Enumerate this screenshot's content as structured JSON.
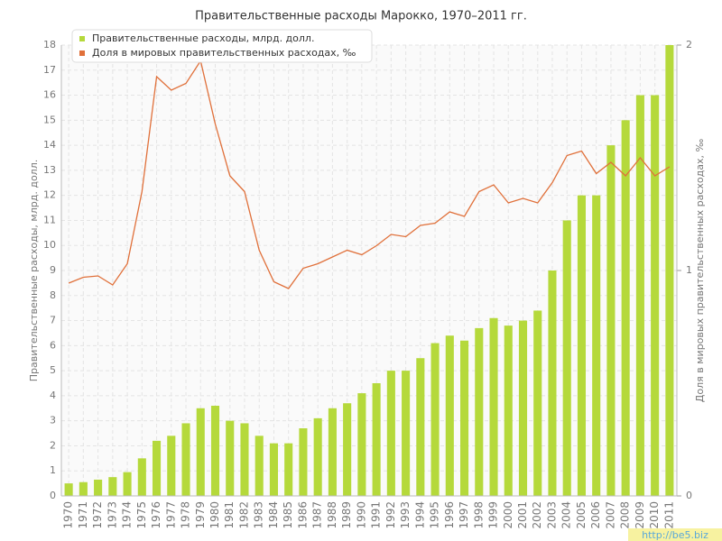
{
  "chart_data": {
    "type": "bar_line",
    "title": "Правительственные расходы Марокко, 1970–2011 гг.",
    "ylabel": "Правительственные расходы, млрд. долл.",
    "y2label": "Доля в мировых правительственных расходах, ‰",
    "watermark": "http://be5.biz",
    "categories": [
      "1970",
      "1971",
      "1972",
      "1973",
      "1974",
      "1975",
      "1976",
      "1977",
      "1978",
      "1979",
      "1980",
      "1981",
      "1982",
      "1983",
      "1984",
      "1985",
      "1986",
      "1987",
      "1988",
      "1989",
      "1990",
      "1991",
      "1992",
      "1993",
      "1994",
      "1995",
      "1996",
      "1997",
      "1998",
      "1999",
      "2000",
      "2001",
      "2002",
      "2003",
      "2004",
      "2005",
      "2006",
      "2007",
      "2008",
      "2009",
      "2010",
      "2011"
    ],
    "series": [
      {
        "name": "Правительственные расходы, млрд. долл.",
        "color": "#b5d93b",
        "type": "bar",
        "values": [
          0.5,
          0.55,
          0.65,
          0.75,
          0.95,
          1.5,
          2.2,
          2.4,
          2.9,
          3.5,
          3.6,
          3.0,
          2.9,
          2.4,
          2.1,
          2.1,
          2.7,
          3.1,
          3.5,
          3.7,
          4.1,
          4.5,
          5.0,
          5.0,
          5.5,
          6.1,
          6.4,
          6.2,
          6.7,
          7.1,
          6.8,
          7.0,
          7.4,
          9.0,
          11.0,
          12.0,
          12.0,
          14.0,
          15.0,
          16.0,
          16.0,
          18.0
        ]
      },
      {
        "name": "Доля в мировых правительственных расходах, ‰",
        "color": "#e0703a",
        "type": "line",
        "axis": "y2",
        "values": [
          0.944,
          0.97,
          0.976,
          0.936,
          1.03,
          1.35,
          1.86,
          1.8,
          1.83,
          1.93,
          1.65,
          1.42,
          1.35,
          1.09,
          0.95,
          0.92,
          1.01,
          1.03,
          1.06,
          1.09,
          1.07,
          1.11,
          1.16,
          1.15,
          1.2,
          1.21,
          1.26,
          1.24,
          1.35,
          1.38,
          1.3,
          1.32,
          1.3,
          1.39,
          1.51,
          1.53,
          1.43,
          1.48,
          1.42,
          1.5,
          1.42,
          1.46
        ]
      }
    ],
    "ylim": [
      0,
      18
    ],
    "yticks": [
      0,
      1,
      2,
      3,
      4,
      5,
      6,
      7,
      8,
      9,
      10,
      11,
      12,
      13,
      14,
      15,
      16,
      17,
      18
    ],
    "y2lim": [
      0,
      2
    ],
    "y2ticks": [
      0,
      1,
      2
    ],
    "grid": true,
    "legend": "top-left"
  }
}
